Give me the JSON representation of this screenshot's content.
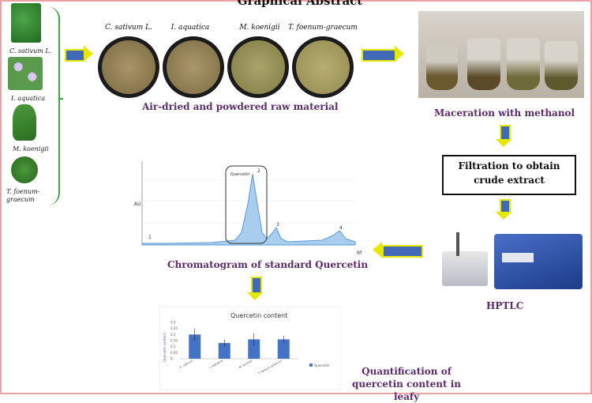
{
  "title": "Graphical Abstract",
  "plants": [
    {
      "label": "C. sativum L.",
      "color": "#2f7d2a"
    },
    {
      "label": "I. aquatica",
      "color": "#6fa86c"
    },
    {
      "label": "M. koenigii",
      "color": "#3f8d2e"
    },
    {
      "label": "T. foenum-graecum",
      "color": "#3a7f2c"
    }
  ],
  "samples": [
    {
      "label": "C. sativum L.",
      "color": "#8a7a4e"
    },
    {
      "label": "I. aquatica",
      "color": "#8d7b50"
    },
    {
      "label": "M. koenigii",
      "color": "#8e8a52"
    },
    {
      "label": "T. foenum-graecum",
      "color": "#a49a5c"
    }
  ],
  "captions": {
    "raw": "Air-dried and powdered raw material",
    "maceration": "Maceration with methanol",
    "filtration": "Filtration to obtain crude extract",
    "hptlc": "HPTLC",
    "chromatogram": "Chromatogram of standard Quercetin",
    "quantification": "Quantification of quercetin content in leafy"
  },
  "chromatogram": {
    "peak_label": "Quercetin",
    "peaks": [
      "1",
      "2",
      "3",
      "4"
    ],
    "x_axis": "Rf",
    "y_axis": "AU"
  },
  "chart_data": {
    "type": "bar",
    "title": "Quercetin content",
    "ylabel": "Quercetin content",
    "ylim": [
      0,
      0.3
    ],
    "yticks": [
      "0.3",
      "0.25",
      "0.2",
      "0.15",
      "0.1",
      "0.05",
      "0"
    ],
    "categories": [
      "C. sativum",
      "I. aquatica",
      "M. koenigii",
      "T. foenum-graecum"
    ],
    "values": [
      0.2,
      0.13,
      0.16,
      0.16
    ],
    "errors": [
      0.05,
      0.03,
      0.05,
      0.03
    ],
    "legend": "Quercetin",
    "bar_color": "#4472c4"
  },
  "colors": {
    "arrow": "#4169b8",
    "arrow_border": "#e6e800",
    "caption": "#5e2a6e",
    "bracket": "#3aa83a"
  }
}
